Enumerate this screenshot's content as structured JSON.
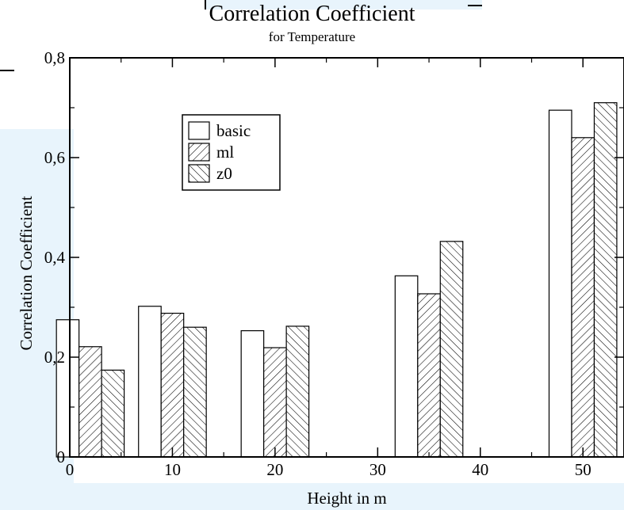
{
  "chart_data": {
    "type": "bar",
    "title": "Correlation Coefficient",
    "subtitle": "for Temperature",
    "xlabel": "Height in m",
    "ylabel": "Correlation Coefficient",
    "xlim": [
      0,
      54
    ],
    "ylim": [
      0,
      0.8
    ],
    "x_ticks": [
      0,
      10,
      20,
      30,
      40,
      50
    ],
    "x_tick_labels": [
      "0",
      "10",
      "20",
      "30",
      "40",
      "50"
    ],
    "y_ticks": [
      0,
      0.2,
      0.4,
      0.6,
      0.8
    ],
    "y_tick_labels": [
      "0",
      "0,2",
      "0,4",
      "0,6",
      "0,8"
    ],
    "categories": [
      2,
      10,
      20,
      35,
      50
    ],
    "series": [
      {
        "name": "basic",
        "pattern": "none",
        "values": [
          0.275,
          0.302,
          0.253,
          0.363,
          0.695
        ]
      },
      {
        "name": "ml",
        "pattern": "forward-hatch",
        "values": [
          0.221,
          0.288,
          0.219,
          0.327,
          0.64
        ]
      },
      {
        "name": "z0",
        "pattern": "back-hatch",
        "values": [
          0.174,
          0.26,
          0.262,
          0.432,
          0.71
        ]
      }
    ],
    "legend": "upper-left",
    "grid": false,
    "colors": {
      "bar_fill": "#ffffff",
      "stroke": "#000000",
      "panel": "#e8f4fc"
    }
  }
}
